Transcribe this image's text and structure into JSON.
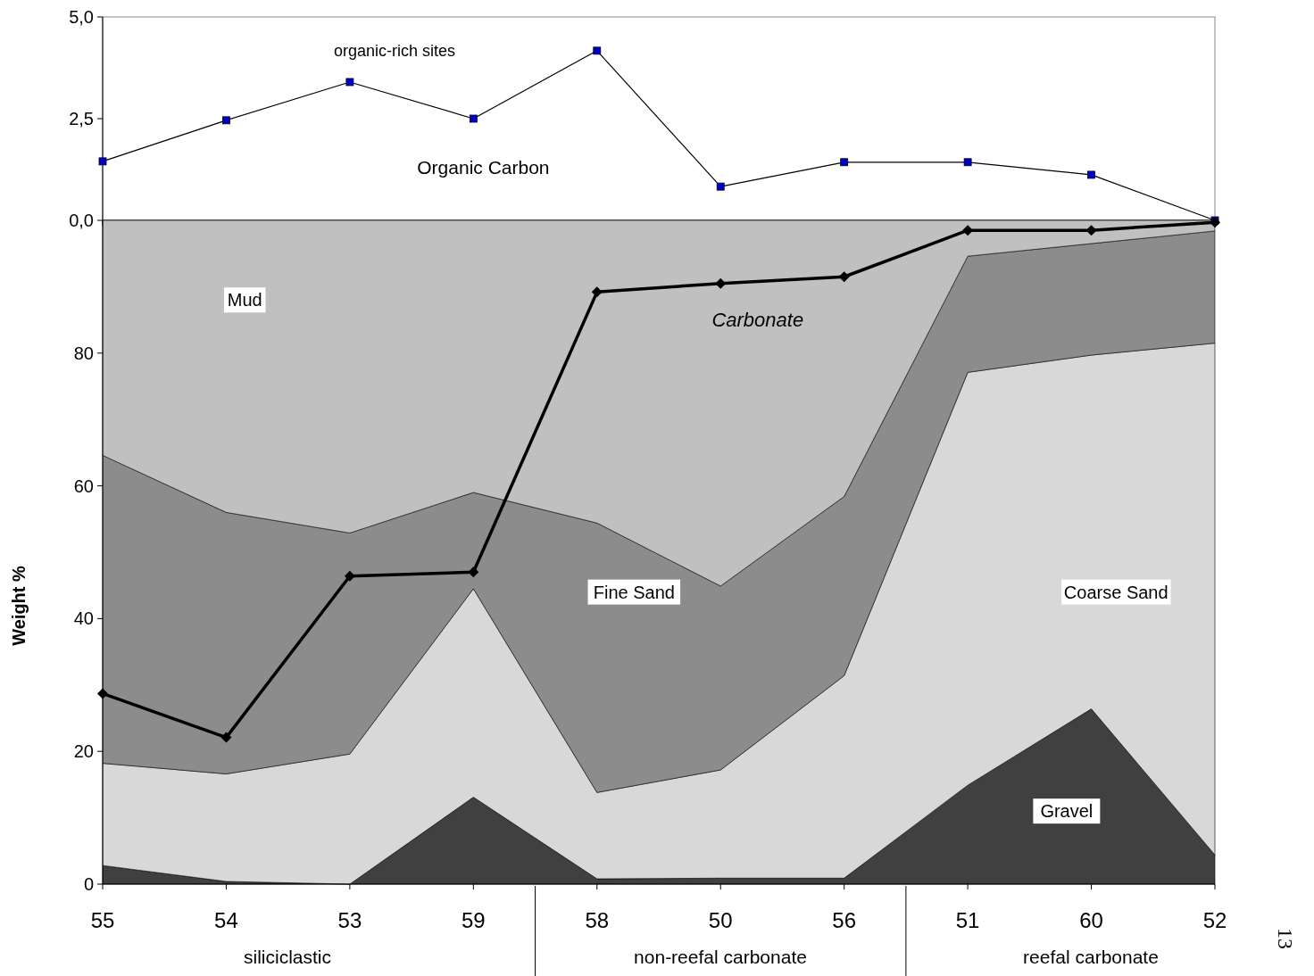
{
  "chart_data": [
    {
      "type": "line",
      "categories": [
        "55",
        "54",
        "53",
        "59",
        "58",
        "50",
        "56",
        "51",
        "60",
        "52"
      ],
      "ylim": [
        0,
        5
      ],
      "yticks": [
        {
          "value": 0,
          "label": "0,0"
        },
        {
          "value": 2.5,
          "label": "2,5"
        },
        {
          "value": 5,
          "label": "5,0"
        }
      ],
      "tick_labels": "y",
      "grid": false,
      "marker": "square",
      "series": [
        {
          "name": "Organic Carbon",
          "color": "#0000cc",
          "values": [
            1.45,
            2.46,
            3.4,
            2.5,
            4.17,
            0.83,
            1.43,
            1.43,
            1.12,
            0
          ]
        }
      ],
      "annotations": [
        "organic-rich sites"
      ]
    },
    {
      "type": "area",
      "stacked": true,
      "categories": [
        "55",
        "54",
        "53",
        "59",
        "58",
        "50",
        "56",
        "51",
        "60",
        "52"
      ],
      "ylim": [
        0,
        100
      ],
      "yticks": [
        0,
        20,
        40,
        60,
        80
      ],
      "ylabel": "Weight %",
      "grid": false,
      "series": [
        {
          "name": "Gravel",
          "color": "#404040",
          "values": [
            2.8,
            0.4,
            0,
            13.1,
            0.8,
            0.9,
            0.9,
            14.9,
            26.4,
            4.4
          ]
        },
        {
          "name": "Coarse Sand",
          "color": "#d8d8d8",
          "values": [
            15.4,
            16.2,
            19.6,
            31.4,
            13.0,
            16.3,
            30.5,
            62.2,
            53.3,
            77.1
          ]
        },
        {
          "name": "Fine Sand",
          "color": "#8c8c8c",
          "values": [
            46.4,
            39.4,
            33.3,
            14.5,
            40.6,
            27.7,
            27.0,
            17.5,
            16.8,
            16.9
          ]
        },
        {
          "name": "Mud",
          "color": "#c0c0c0",
          "values": [
            35.4,
            44.0,
            47.1,
            41.0,
            45.6,
            55.1,
            41.6,
            5.4,
            3.5,
            1.6
          ]
        },
        {
          "name": "Carbonate",
          "type": "line",
          "color": "#000000",
          "marker": "diamond",
          "values": [
            28.7,
            22.1,
            46.4,
            47.0,
            89.2,
            90.5,
            91.5,
            98.5,
            98.5,
            99.7
          ]
        }
      ],
      "annotations": [
        "siliciclastic",
        "non-reefal carbonate",
        "reefal carbonate",
        "13"
      ]
    }
  ]
}
